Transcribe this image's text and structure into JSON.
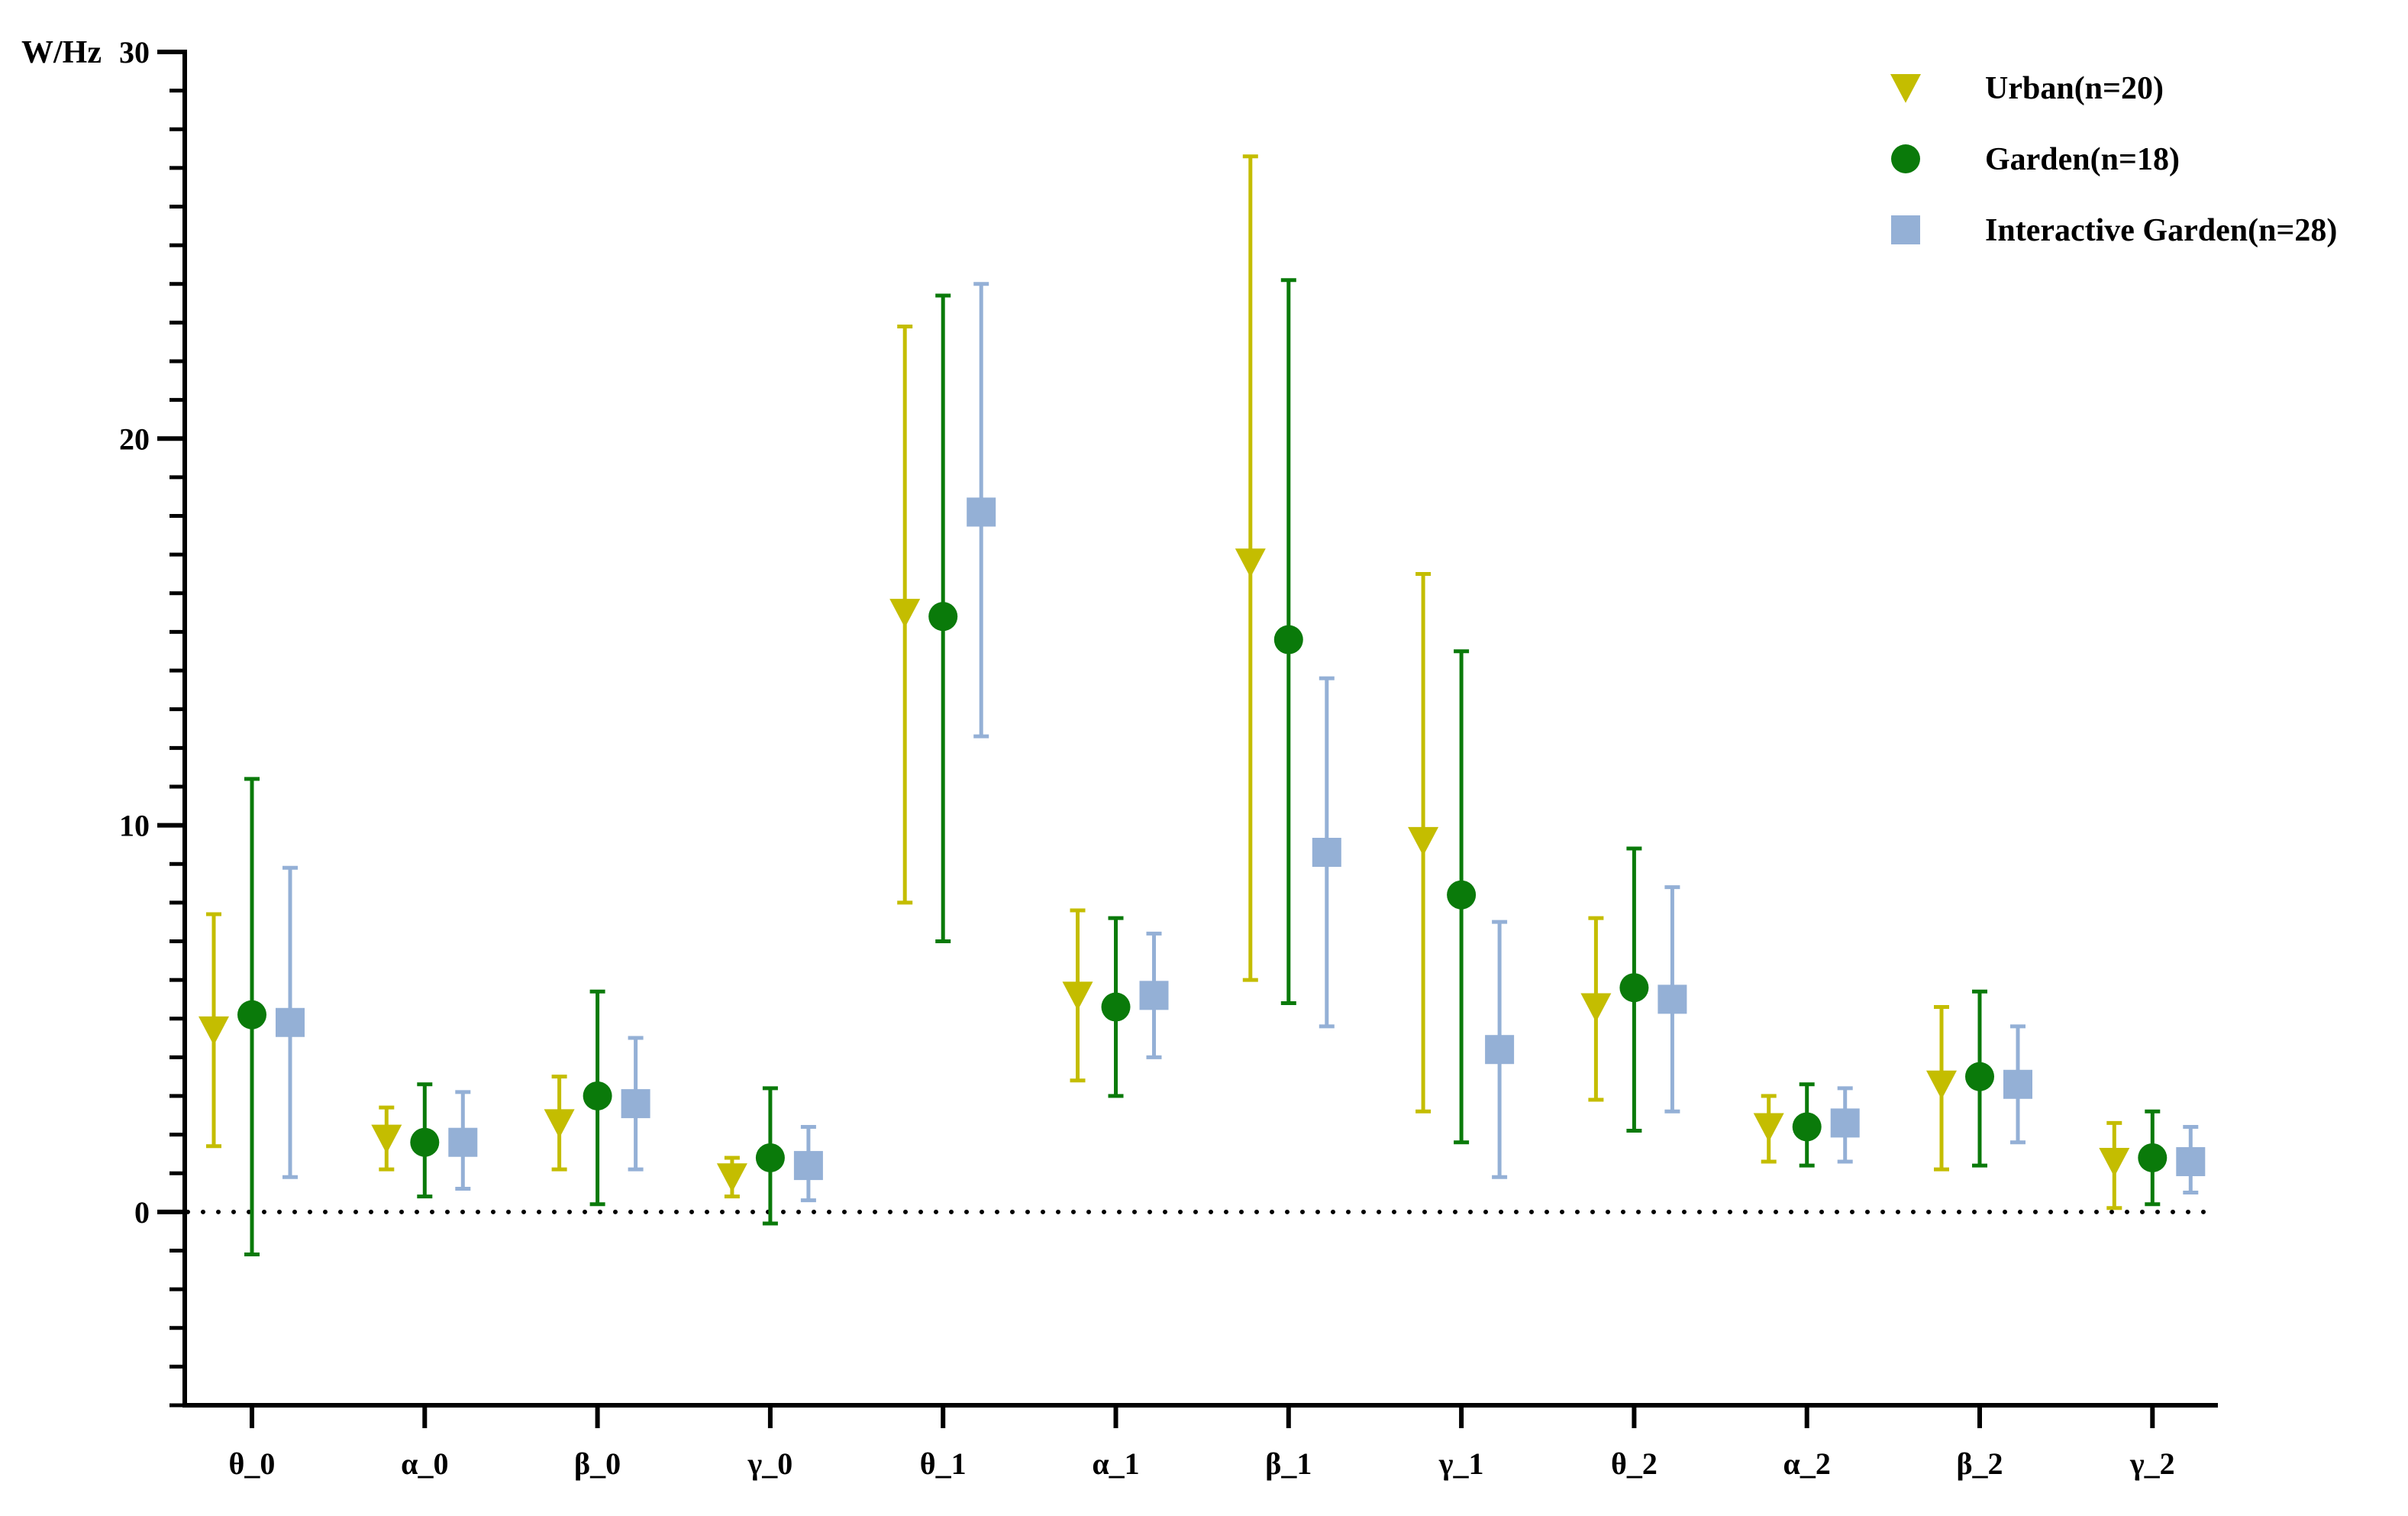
{
  "chart_data": {
    "type": "scatter",
    "ylabel": "W/Hz",
    "ylim": [
      -5,
      30
    ],
    "yticks": [
      0,
      10,
      20,
      30
    ],
    "y_minor_step": 1,
    "reference_line": {
      "y": 0,
      "style": "dotted",
      "color": "#000000"
    },
    "categories": [
      "θ_0",
      "α_0",
      "β_0",
      "γ_0",
      "θ_1",
      "α_1",
      "β_1",
      "γ_1",
      "θ_2",
      "α_2",
      "β_2",
      "γ_2"
    ],
    "legend_position": "top-right",
    "series": [
      {
        "name": "Urban(n=20)",
        "marker": "triangle-down",
        "color": "#c4bd00",
        "values": [
          4.7,
          1.9,
          2.3,
          0.9,
          15.5,
          5.6,
          16.8,
          9.6,
          5.3,
          2.2,
          3.3,
          1.3
        ],
        "err_low": [
          1.7,
          1.1,
          1.1,
          0.4,
          8.0,
          3.4,
          6.0,
          2.6,
          2.9,
          1.3,
          1.1,
          0.1
        ],
        "err_high": [
          7.7,
          2.7,
          3.5,
          1.4,
          22.9,
          7.8,
          27.3,
          16.5,
          7.6,
          3.0,
          5.3,
          2.3
        ]
      },
      {
        "name": "Garden(n=18)",
        "marker": "circle",
        "color": "#0a7a0a",
        "values": [
          5.1,
          1.8,
          3.0,
          1.4,
          15.4,
          5.3,
          14.8,
          8.2,
          5.8,
          2.2,
          3.5,
          1.4
        ],
        "err_low": [
          -1.1,
          0.4,
          0.2,
          -0.3,
          7.0,
          3.0,
          5.4,
          1.8,
          2.1,
          1.2,
          1.2,
          0.2
        ],
        "err_high": [
          11.2,
          3.3,
          5.7,
          3.2,
          23.7,
          7.6,
          24.1,
          14.5,
          9.4,
          3.3,
          5.7,
          2.6
        ]
      },
      {
        "name": "Interactive Garden(n=28)",
        "marker": "square",
        "color": "#94b0d6",
        "values": [
          4.9,
          1.8,
          2.8,
          1.2,
          18.1,
          5.6,
          9.3,
          4.2,
          5.5,
          2.3,
          3.3,
          1.3
        ],
        "err_low": [
          0.9,
          0.6,
          1.1,
          0.3,
          12.3,
          4.0,
          4.8,
          0.9,
          2.6,
          1.3,
          1.8,
          0.5
        ],
        "err_high": [
          8.9,
          3.1,
          4.5,
          2.2,
          24.0,
          7.2,
          13.8,
          7.5,
          8.4,
          3.2,
          4.8,
          2.2
        ]
      }
    ]
  }
}
